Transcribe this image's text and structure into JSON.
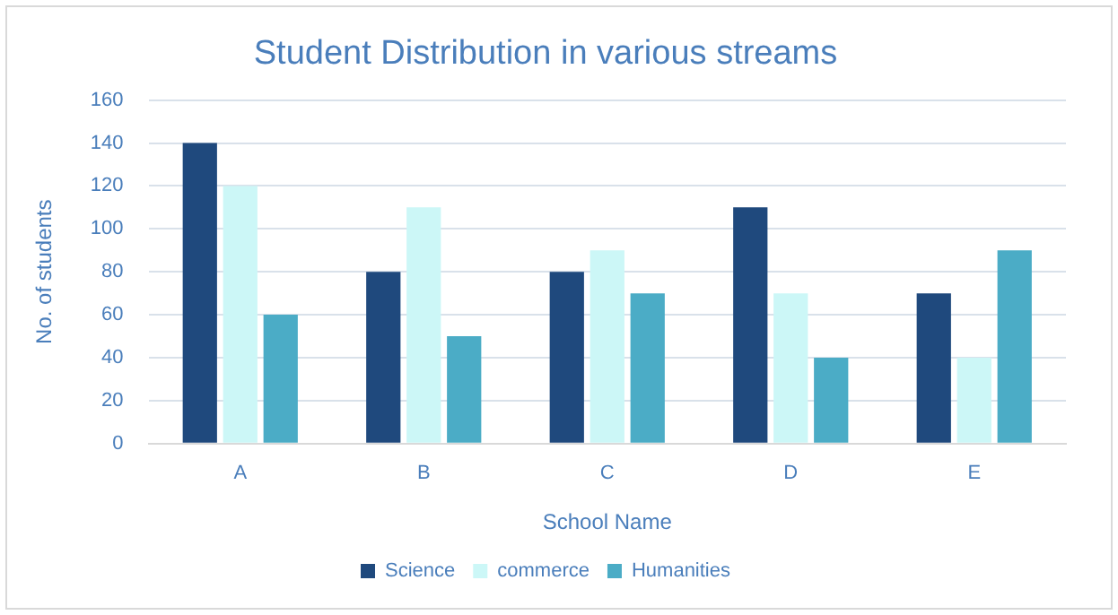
{
  "chart_data": {
    "type": "bar",
    "title": "Student Distribution in various streams",
    "xlabel": "School Name",
    "ylabel": "No. of students",
    "categories": [
      "A",
      "B",
      "C",
      "D",
      "E"
    ],
    "series": [
      {
        "name": "Science",
        "color": "#1f497d",
        "values": [
          140,
          80,
          80,
          110,
          70
        ]
      },
      {
        "name": "commerce",
        "color": "#ccf7f7",
        "values": [
          120,
          110,
          90,
          70,
          40
        ]
      },
      {
        "name": "Humanities",
        "color": "#4bacc6",
        "values": [
          60,
          50,
          70,
          40,
          90
        ]
      }
    ],
    "ylim": [
      0,
      160
    ],
    "yticks": [
      0,
      20,
      40,
      60,
      80,
      100,
      120,
      140,
      160
    ],
    "grid": "y",
    "legend": "bottom"
  }
}
